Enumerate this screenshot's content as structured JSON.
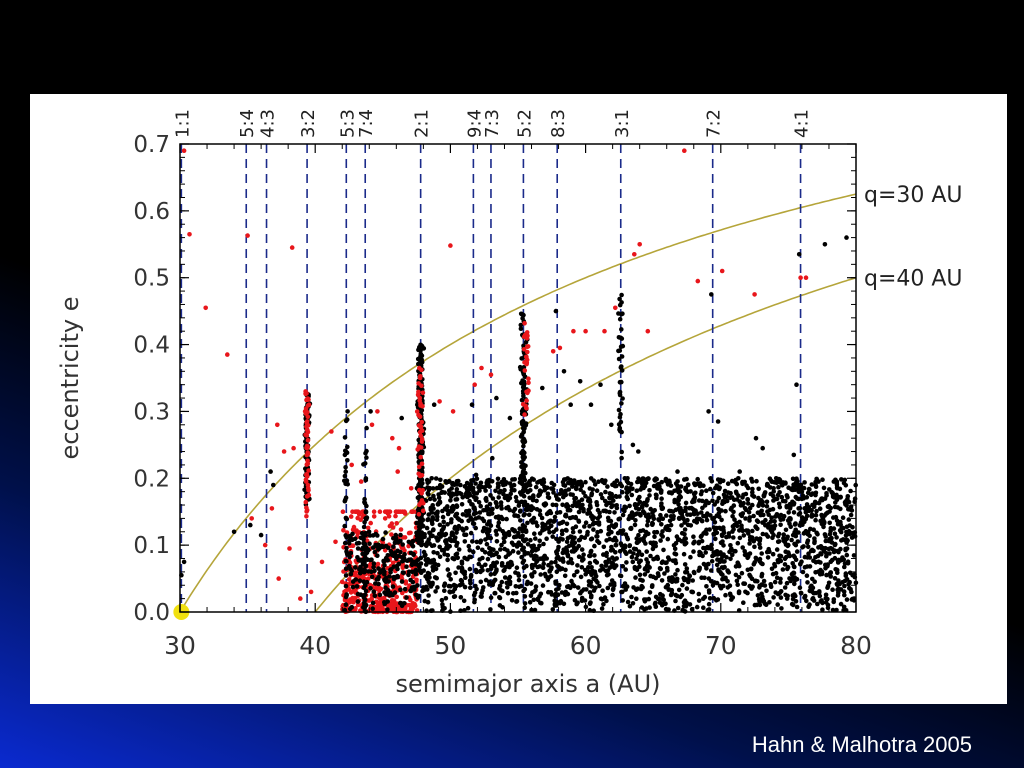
{
  "caption": "Hahn & Malhotra 2005",
  "colors": {
    "background": "#000000",
    "panel": "#ffffff",
    "black_points": "#000000",
    "red_points": "#e8161b",
    "q_curves": "#b5a53a",
    "resonance_lines": "#1a2a8a",
    "marker": "#f0e010"
  },
  "chart_data": {
    "type": "scatter",
    "xlabel": "semimajor axis a      (AU)",
    "ylabel": "eccentricity e",
    "xlim": [
      30,
      80
    ],
    "ylim": [
      0.0,
      0.7
    ],
    "x_ticks": [
      "30",
      "40",
      "50",
      "60",
      "70",
      "80"
    ],
    "y_ticks": [
      "0.0",
      "0.1",
      "0.2",
      "0.3",
      "0.4",
      "0.5",
      "0.6",
      "0.7"
    ],
    "resonances": [
      {
        "label": "1:1",
        "a": 30.1
      },
      {
        "label": "5:4",
        "a": 34.9
      },
      {
        "label": "4:3",
        "a": 36.4
      },
      {
        "label": "3:2",
        "a": 39.4
      },
      {
        "label": "5:3",
        "a": 42.3
      },
      {
        "label": "7:4",
        "a": 43.7
      },
      {
        "label": "2:1",
        "a": 47.8
      },
      {
        "label": "9:4",
        "a": 51.7
      },
      {
        "label": "7:3",
        "a": 53.0
      },
      {
        "label": "5:2",
        "a": 55.4
      },
      {
        "label": "8:3",
        "a": 57.9
      },
      {
        "label": "3:1",
        "a": 62.6
      },
      {
        "label": "7:2",
        "a": 69.4
      },
      {
        "label": "4:1",
        "a": 75.9
      }
    ],
    "curves": [
      {
        "label": "q=30 AU",
        "q": 30
      },
      {
        "label": "q=40 AU",
        "q": 40
      }
    ],
    "marker": {
      "label": "Neptune",
      "a": 30.1,
      "e": 0.0
    },
    "series": [
      {
        "color": "red",
        "points": [
          [
            30.3,
            0.69
          ],
          [
            30.7,
            0.565
          ],
          [
            31.9,
            0.455
          ],
          [
            33.5,
            0.385
          ],
          [
            35.0,
            0.563
          ],
          [
            38.3,
            0.545
          ],
          [
            50.0,
            0.548
          ],
          [
            64.0,
            0.55
          ],
          [
            63.6,
            0.535
          ],
          [
            67.3,
            0.69
          ],
          [
            68.3,
            0.495
          ],
          [
            70.1,
            0.51
          ],
          [
            72.5,
            0.475
          ],
          [
            75.9,
            0.5
          ],
          [
            76.3,
            0.5
          ],
          [
            61.4,
            0.42
          ],
          [
            62.2,
            0.455
          ],
          [
            64.6,
            0.42
          ],
          [
            60.0,
            0.42
          ],
          [
            59.1,
            0.42
          ],
          [
            58.1,
            0.395
          ],
          [
            57.6,
            0.39
          ],
          [
            53.0,
            0.355
          ],
          [
            52.3,
            0.365
          ],
          [
            51.8,
            0.34
          ],
          [
            50.2,
            0.3
          ],
          [
            49.2,
            0.315
          ],
          [
            45.7,
            0.26
          ],
          [
            46.2,
            0.245
          ],
          [
            44.6,
            0.3
          ],
          [
            44.2,
            0.28
          ],
          [
            41.2,
            0.27
          ],
          [
            38.4,
            0.245
          ],
          [
            37.7,
            0.24
          ],
          [
            37.2,
            0.28
          ],
          [
            36.8,
            0.155
          ],
          [
            35.3,
            0.14
          ],
          [
            36.3,
            0.1
          ],
          [
            37.3,
            0.05
          ],
          [
            38.9,
            0.02
          ],
          [
            39.7,
            0.03
          ],
          [
            40.5,
            0.075
          ],
          [
            41.5,
            0.105
          ],
          [
            42.7,
            0.22
          ],
          [
            43.4,
            0.195
          ],
          [
            46.1,
            0.21
          ],
          [
            47.1,
            0.185
          ],
          [
            42.0,
            0.045
          ],
          [
            38.1,
            0.095
          ]
        ]
      },
      {
        "color": "black",
        "points": [
          [
            30.3,
            0.075
          ],
          [
            30.1,
            0.055
          ],
          [
            34.0,
            0.12
          ],
          [
            35.2,
            0.13
          ],
          [
            36.0,
            0.115
          ],
          [
            36.9,
            0.19
          ],
          [
            36.7,
            0.21
          ],
          [
            42.4,
            0.3
          ],
          [
            43.8,
            0.275
          ],
          [
            44.1,
            0.3
          ],
          [
            46.4,
            0.29
          ],
          [
            48.8,
            0.31
          ],
          [
            51.6,
            0.31
          ],
          [
            53.4,
            0.32
          ],
          [
            53.1,
            0.23
          ],
          [
            51.9,
            0.205
          ],
          [
            54.4,
            0.29
          ],
          [
            56.8,
            0.335
          ],
          [
            57.8,
            0.45
          ],
          [
            58.4,
            0.36
          ],
          [
            58.9,
            0.31
          ],
          [
            59.6,
            0.345
          ],
          [
            60.4,
            0.31
          ],
          [
            61.1,
            0.34
          ],
          [
            61.9,
            0.28
          ],
          [
            63.5,
            0.25
          ],
          [
            63.1,
            0.2
          ],
          [
            66.8,
            0.21
          ],
          [
            68.1,
            0.19
          ],
          [
            69.3,
            0.475
          ],
          [
            69.8,
            0.285
          ],
          [
            69.1,
            0.3
          ],
          [
            71.4,
            0.21
          ],
          [
            72.6,
            0.26
          ],
          [
            74.1,
            0.2
          ],
          [
            75.4,
            0.235
          ],
          [
            75.6,
            0.34
          ],
          [
            76.0,
            0.18
          ],
          [
            76.2,
            0.155
          ],
          [
            75.8,
            0.535
          ],
          [
            77.7,
            0.55
          ],
          [
            79.3,
            0.56
          ],
          [
            79.9,
            0.165
          ],
          [
            80.2,
            0.22
          ],
          [
            73.1,
            0.245
          ],
          [
            62.9,
            0.2
          ],
          [
            63.9,
            0.24
          ]
        ]
      }
    ],
    "clusters": [
      {
        "color": "black",
        "a": 39.4,
        "spread_a": 0.25,
        "e_min": 0.16,
        "e_max": 0.33,
        "count": 90
      },
      {
        "color": "red",
        "a": 39.4,
        "spread_a": 0.25,
        "e_min": 0.14,
        "e_max": 0.33,
        "count": 55
      },
      {
        "color": "black",
        "a": 47.8,
        "spread_a": 0.3,
        "e_min": 0.1,
        "e_max": 0.4,
        "count": 220
      },
      {
        "color": "red",
        "a": 47.8,
        "spread_a": 0.3,
        "e_min": 0.14,
        "e_max": 0.37,
        "count": 45
      },
      {
        "color": "black",
        "a": 55.4,
        "spread_a": 0.35,
        "e_min": 0.18,
        "e_max": 0.45,
        "count": 110
      },
      {
        "color": "red",
        "a": 55.6,
        "spread_a": 0.35,
        "e_min": 0.28,
        "e_max": 0.44,
        "count": 30
      },
      {
        "color": "black",
        "a": 62.6,
        "spread_a": 0.3,
        "e_min": 0.22,
        "e_max": 0.48,
        "count": 40
      },
      {
        "color": "black",
        "a": 42.3,
        "spread_a": 0.2,
        "e_min": 0.0,
        "e_max": 0.29,
        "count": 40
      },
      {
        "color": "black",
        "a": 43.7,
        "spread_a": 0.2,
        "e_min": 0.0,
        "e_max": 0.25,
        "count": 45
      }
    ],
    "backgrounds": [
      {
        "color": "red",
        "a_min": 42.0,
        "a_max": 47.6,
        "e_min": 0.0,
        "e_max": 0.15,
        "count": 480
      },
      {
        "color": "black",
        "a_min": 47.5,
        "a_max": 80.0,
        "e_min": 0.0,
        "e_max": 0.2,
        "count": 2600
      },
      {
        "color": "black",
        "a_min": 42.5,
        "a_max": 47.5,
        "e_min": 0.0,
        "e_max": 0.12,
        "count": 220
      }
    ]
  }
}
